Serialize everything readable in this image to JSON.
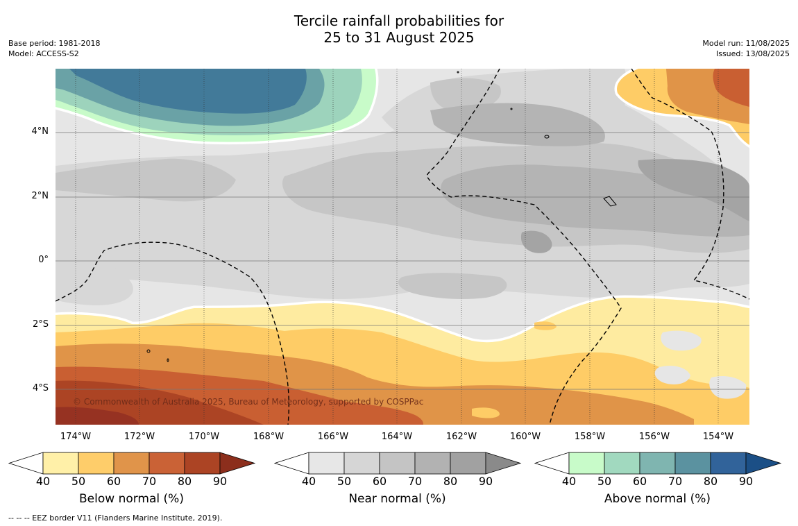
{
  "title_line1": "Tercile rainfall probabilities for",
  "title_line2": "25 to 31 August 2025",
  "base_period": "Base period: 1981-2018",
  "model": "Model: ACCESS-S2",
  "model_run": "Model run: 11/08/2025",
  "issued": "Issued: 13/08/2025",
  "copyright": "© Commonwealth of Australia 2025, Bureau of Meteorology, supported by COSPPac",
  "footnote": "--  --  -- EEZ border V11 (Flanders Marine Institute, 2019).",
  "longitude_labels": [
    "174°W",
    "172°W",
    "170°W",
    "168°W",
    "166°W",
    "164°W",
    "162°W",
    "160°W",
    "158°W",
    "156°W",
    "154°W"
  ],
  "latitude_labels": [
    "4°N",
    "2°N",
    "0°",
    "2°S",
    "4°S"
  ],
  "colorbars": [
    {
      "label": "Below normal (%)",
      "ticks": [
        "40",
        "50",
        "60",
        "70",
        "80",
        "90"
      ],
      "colors": [
        "#fff0a8",
        "#fecd6a",
        "#e0944a",
        "#ca6236",
        "#ac4424"
      ],
      "over": "#8c2e1c"
    },
    {
      "label": "Near normal (%)",
      "ticks": [
        "40",
        "50",
        "60",
        "70",
        "80",
        "90"
      ],
      "colors": [
        "#e7e7e7",
        "#d6d6d6",
        "#c4c4c4",
        "#b2b2b2",
        "#a1a1a1"
      ],
      "over": "#8a8a8a"
    },
    {
      "label": "Above normal (%)",
      "ticks": [
        "40",
        "50",
        "60",
        "70",
        "80",
        "90"
      ],
      "colors": [
        "#c8fbc9",
        "#a1d9bf",
        "#7fb5b0",
        "#5b92a0",
        "#31639a"
      ],
      "over": "#1b4f86"
    }
  ],
  "map_colors": {
    "above_90": "#427a99",
    "above_70": "#6aa2a6",
    "above_60": "#9dd3bc",
    "above_50": "#c8fbc9",
    "near_40": "#e6e6e6",
    "near_50": "#d7d7d7",
    "near_60": "#c6c6c6",
    "near_70": "#b4b4b4",
    "near_80": "#a4a4a4",
    "below_40": "#feeba0",
    "below_50": "#fecc66",
    "below_60": "#e09448",
    "below_70": "#c95f32",
    "below_80": "#ac4424",
    "below_90": "#963222"
  }
}
